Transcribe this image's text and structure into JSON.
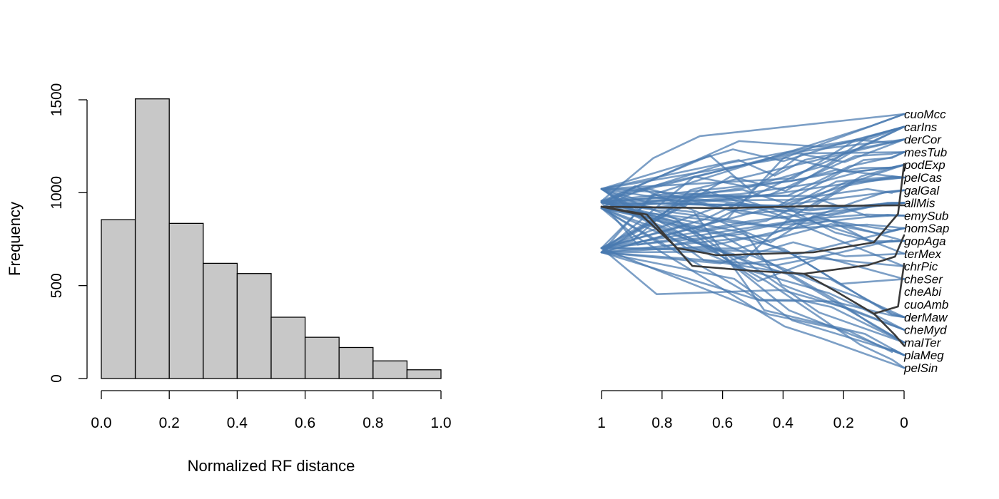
{
  "chart_data": [
    {
      "type": "bar",
      "title": "",
      "xlabel": "Normalized RF distance",
      "ylabel": "Frequency",
      "bins": [
        [
          0.0,
          0.1
        ],
        [
          0.1,
          0.2
        ],
        [
          0.2,
          0.3
        ],
        [
          0.3,
          0.4
        ],
        [
          0.4,
          0.5
        ],
        [
          0.5,
          0.6
        ],
        [
          0.6,
          0.7
        ],
        [
          0.7,
          0.8
        ],
        [
          0.8,
          0.9
        ],
        [
          0.9,
          1.0
        ]
      ],
      "values": [
        855,
        1505,
        835,
        620,
        565,
        330,
        222,
        167,
        95,
        47
      ],
      "xlim": [
        0,
        1
      ],
      "ylim": [
        0,
        1500
      ],
      "x_ticks": [
        "0.0",
        "0.2",
        "0.4",
        "0.6",
        "0.8",
        "1.0"
      ],
      "y_ticks": [
        "0",
        "500",
        "1000",
        "1500"
      ],
      "bar_color": "#c8c8c8",
      "grid": false
    },
    {
      "type": "tree",
      "title": "",
      "xlim": [
        1,
        0
      ],
      "x_ticks": [
        "1",
        "0.8",
        "0.6",
        "0.4",
        "0.2",
        "0"
      ],
      "tips": [
        "cuoMcc",
        "carIns",
        "derCor",
        "mesTub",
        "podExp",
        "pelCas",
        "galGal",
        "allMis",
        "emySub",
        "homSap",
        "gopAga",
        "terMex",
        "chrPic",
        "cheSer",
        "cheAbi",
        "cuoAmb",
        "derMaw",
        "cheMyd",
        "malTer",
        "plaMeg",
        "pelSin"
      ],
      "tree_color": "#4a7ab0",
      "consensus_color": "#3a3a3a",
      "grid": false
    }
  ]
}
